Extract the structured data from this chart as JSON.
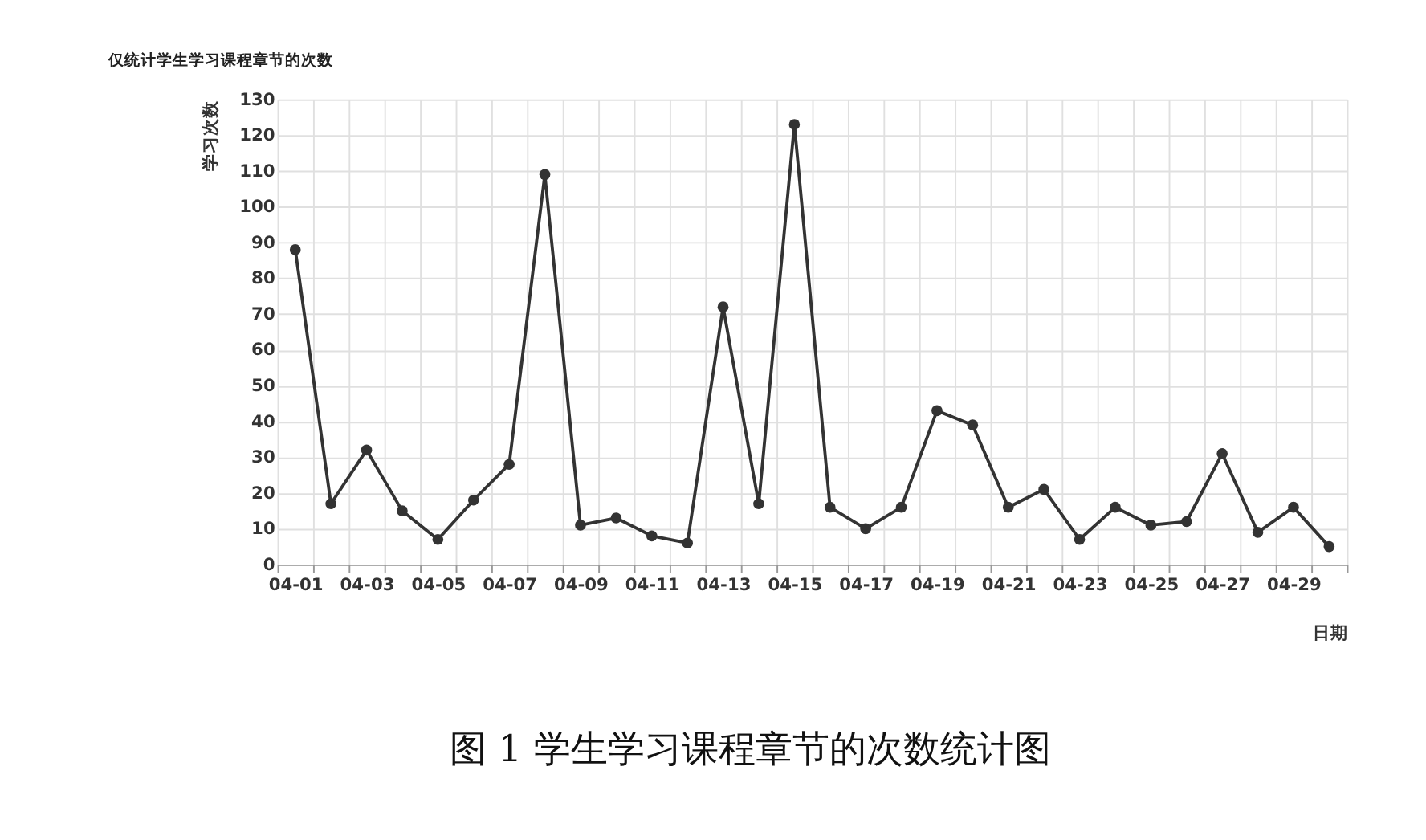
{
  "chart_data": {
    "type": "line",
    "title": "仅统计学生学习课程章节的次数",
    "xlabel": "日期",
    "ylabel": "学习次数",
    "categories": [
      "04-01",
      null,
      "04-03",
      null,
      "04-05",
      null,
      "04-07",
      null,
      "04-09",
      null,
      "04-11",
      null,
      "04-13",
      null,
      "04-15",
      null,
      "04-17",
      null,
      "04-19",
      null,
      "04-21",
      null,
      "04-23",
      null,
      "04-25",
      null,
      "04-27",
      null,
      "04-29",
      null
    ],
    "series": [
      {
        "color": "#333333",
        "values": [
          88,
          17,
          32,
          15,
          7,
          18,
          28,
          109,
          11,
          13,
          8,
          6,
          72,
          17,
          123,
          16,
          10,
          16,
          43,
          39,
          16,
          21,
          7,
          16,
          11,
          12,
          31,
          9,
          16,
          5
        ]
      }
    ],
    "ylim": [
      0,
      130
    ],
    "yticks": [
      0,
      10,
      20,
      30,
      40,
      50,
      60,
      70,
      80,
      90,
      100,
      110,
      120,
      130
    ],
    "grid": true,
    "marker": "circle",
    "line_style": "solid",
    "annotations": [
      "图 1 学生学习课程章节的次数统计图"
    ]
  }
}
